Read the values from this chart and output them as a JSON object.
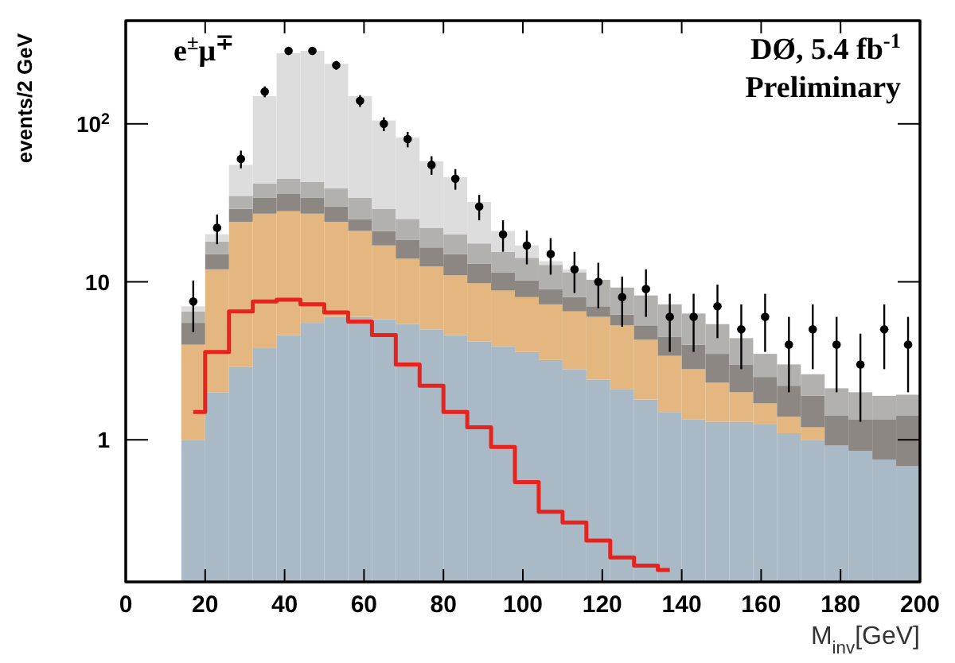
{
  "chart_data": {
    "type": "bar",
    "stacked": true,
    "log": true,
    "xlabel": "M$_{inv}$[GeV]",
    "ylabel": "events/2 GeV",
    "annotations": [
      "e$^{±}$μ$^{∓}$",
      "DØ, 5.4 fb$^{-1}$",
      "Preliminary"
    ],
    "x": [
      17,
      23,
      29,
      35,
      41,
      47,
      53,
      59,
      65,
      71,
      77,
      83,
      89,
      95,
      101,
      107,
      113,
      119,
      125,
      131,
      137,
      143,
      149,
      155,
      161,
      167,
      173,
      179,
      185,
      191,
      197
    ],
    "xlim": [
      0,
      200
    ],
    "ylim": [
      0.126,
      450
    ],
    "xticks": [
      0,
      20,
      40,
      60,
      80,
      100,
      120,
      140,
      160,
      180,
      200
    ],
    "yticks": [
      1,
      10,
      {
        "value": 100,
        "label": "10$^{2}$"
      }
    ],
    "series": [
      {
        "color": "#a9b9c6",
        "values": [
          1.0,
          2.0,
          2.9,
          3.8,
          4.6,
          5.5,
          6.0,
          6.0,
          5.8,
          5.4,
          5.0,
          4.6,
          4.2,
          3.9,
          3.6,
          3.2,
          2.8,
          2.4,
          2.1,
          1.8,
          1.5,
          1.35,
          1.3,
          1.3,
          1.25,
          1.1,
          1.0,
          0.92,
          0.85,
          0.75,
          0.68
        ]
      },
      {
        "color": "#e3b77f",
        "values": [
          3.0,
          10.0,
          21.1,
          23.2,
          23.4,
          21.5,
          18.0,
          15.0,
          11.2,
          8.6,
          7.5,
          6.4,
          5.6,
          4.9,
          4.4,
          4.0,
          3.7,
          3.6,
          3.2,
          2.5,
          1.9,
          1.45,
          1.0,
          0.7,
          0.45,
          0.3,
          0.2,
          null,
          null,
          null,
          null
        ]
      },
      {
        "color": "#8c8782",
        "values": [
          1.5,
          3,
          5,
          7,
          8,
          7,
          6,
          4,
          4,
          4.5,
          4,
          4,
          3.2,
          2.7,
          2.2,
          1.8,
          1.5,
          1,
          0.9,
          1.0,
          1.1,
          1.2,
          1.2,
          1.0,
          0.8,
          0.8,
          0.7,
          0.5,
          0.5,
          0.6,
          0.75
        ]
      },
      {
        "color": "#b3b1ae",
        "values": [
          1,
          3,
          6,
          8,
          9,
          9,
          9,
          9,
          8,
          6.5,
          5.5,
          5,
          4.5,
          4,
          4,
          3.8,
          3.5,
          3.3,
          3,
          2.9,
          2.7,
          2.3,
          1.9,
          1.4,
          1.0,
          0.8,
          0.7,
          0.7,
          0.65,
          0.55,
          0.5
        ]
      },
      {
        "color": "#dddddd",
        "values": [
          0.5,
          2,
          20,
          108,
          235,
          247,
          201,
          116,
          76,
          57,
          36,
          26,
          14.5,
          5.5,
          2.8,
          0.7,
          0.5,
          null,
          null,
          null,
          null,
          null,
          null,
          null,
          null,
          null,
          null,
          null,
          null,
          null,
          null
        ]
      },
      {
        "type": "step",
        "color": "#e8231d",
        "x": [
          17,
          23,
          29,
          35,
          41,
          47,
          53,
          59,
          65,
          71,
          77,
          83,
          89,
          95,
          101,
          107,
          113,
          119,
          125,
          131,
          137
        ],
        "values": [
          1.5,
          3.6,
          6.5,
          7.5,
          7.7,
          7.2,
          6.4,
          5.6,
          4.6,
          3.0,
          2.2,
          1.5,
          1.2,
          0.9,
          0.54,
          0.35,
          0.3,
          0.23,
          0.18,
          0.16,
          0.15
        ]
      },
      {
        "type": "scatter",
        "marker": "circle",
        "color": "#000000",
        "x": [
          17,
          23,
          29,
          35,
          41,
          47,
          53,
          59,
          65,
          71,
          77,
          83,
          89,
          95,
          101,
          107,
          113,
          119,
          125,
          131,
          137,
          143,
          149,
          155,
          161,
          167,
          173,
          179,
          185,
          191,
          197
        ],
        "values": [
          7.5,
          22,
          60,
          160,
          290,
          290,
          235,
          140,
          100,
          80,
          55,
          45,
          30,
          20,
          17,
          15,
          12,
          10,
          8,
          9,
          6,
          6,
          7,
          5,
          6,
          4,
          5,
          4,
          3,
          5,
          4
        ],
        "errors": [
          2.7,
          4.7,
          7.7,
          12.6,
          17,
          17,
          15,
          12,
          10,
          9,
          7.4,
          6.7,
          5.5,
          4.5,
          4.1,
          3.9,
          3.5,
          3.2,
          2.8,
          3,
          2.4,
          2.4,
          2.6,
          2.2,
          2.4,
          2,
          2.2,
          2,
          1.7,
          2.2,
          2
        ]
      }
    ]
  }
}
